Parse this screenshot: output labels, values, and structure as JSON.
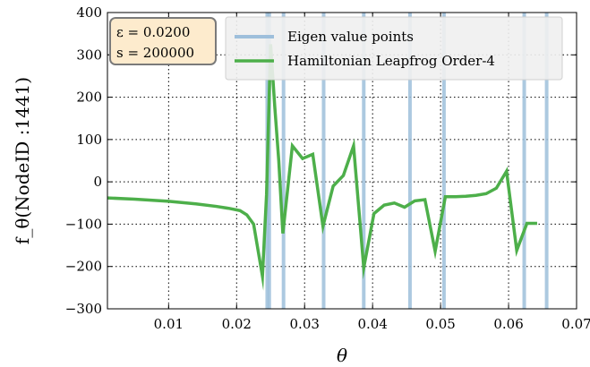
{
  "chart_data": {
    "type": "line",
    "xlabel": "θ",
    "ylabel": "f_θ(NodeID :1441)",
    "xlim": [
      0.001,
      0.07
    ],
    "ylim": [
      -300,
      400
    ],
    "xticks": [
      0.01,
      0.02,
      0.03,
      0.04,
      0.05,
      0.06,
      0.07
    ],
    "xtick_labels": [
      "0.01",
      "0.02",
      "0.03",
      "0.04",
      "0.05",
      "0.06",
      "0.07"
    ],
    "yticks": [
      -300,
      -200,
      -100,
      0,
      100,
      200,
      300,
      400
    ],
    "ytick_labels": [
      "−300",
      "−200",
      "−100",
      "0",
      "100",
      "200",
      "300",
      "400"
    ],
    "grid": true,
    "legend_placement": "top-right",
    "params_box": {
      "line1": "ε = 0.0200",
      "line2": "s = 200000"
    },
    "eigen_values": {
      "name": "Eigen value points",
      "color": "#9ebfdb",
      "x": [
        0.0245,
        0.0248,
        0.0269,
        0.0328,
        0.0387,
        0.0455,
        0.0505,
        0.0623,
        0.0656
      ]
    },
    "series": [
      {
        "name": "Hamiltonian Leapfrog Order-4",
        "color": "#4daf4a",
        "x": [
          0.001,
          0.005,
          0.01,
          0.014,
          0.017,
          0.019,
          0.0205,
          0.0215,
          0.0225,
          0.0238,
          0.0244,
          0.025,
          0.0256,
          0.0262,
          0.0268,
          0.0282,
          0.0297,
          0.0312,
          0.0327,
          0.0342,
          0.0357,
          0.0372,
          0.0387,
          0.0402,
          0.0417,
          0.0432,
          0.0447,
          0.0462,
          0.0477,
          0.0492,
          0.0507,
          0.0522,
          0.0537,
          0.0552,
          0.0567,
          0.0582,
          0.0597,
          0.0612,
          0.0627,
          0.0642
        ],
        "y": [
          -38,
          -41,
          -46,
          -52,
          -58,
          -63,
          -68,
          -78,
          -100,
          -223,
          -30,
          325,
          180,
          50,
          -122,
          85,
          55,
          65,
          -105,
          -10,
          15,
          85,
          -203,
          -75,
          -55,
          -50,
          -60,
          -45,
          -42,
          -164,
          -35,
          -35,
          -34,
          -32,
          -28,
          -15,
          25,
          -162,
          -98,
          -98
        ]
      }
    ]
  }
}
